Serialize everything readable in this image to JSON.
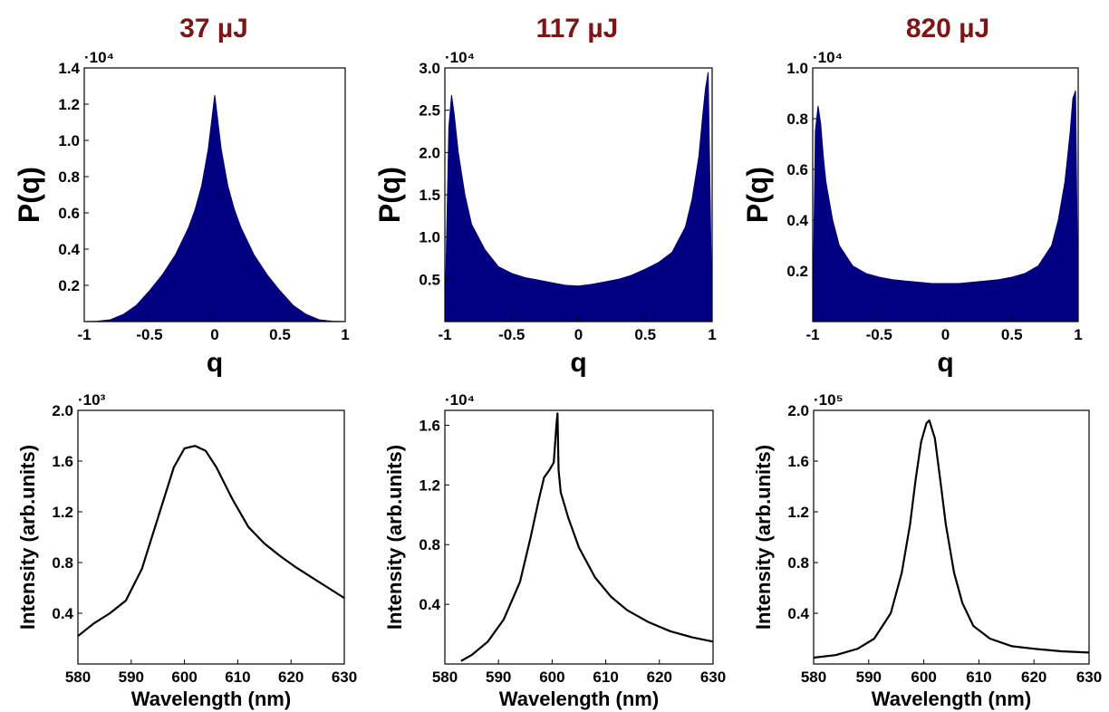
{
  "columns": [
    {
      "title": "37 µJ"
    },
    {
      "title": "117 µJ"
    },
    {
      "title": "820 µJ"
    }
  ],
  "chart_data": [
    {
      "type": "area",
      "panel": "histogram",
      "xlabel": "q",
      "ylabel": "P(q)",
      "multiplier": "·10⁴",
      "xlim": [
        -1,
        1
      ],
      "ylim": [
        0,
        1.4
      ],
      "xticks": [
        "-1",
        "-0.5",
        "0",
        "0.5",
        "1"
      ],
      "yticks": [
        "0.2",
        "0.4",
        "0.6",
        "0.8",
        "1.0",
        "1.2",
        "1.4"
      ],
      "color": "#000080",
      "x": [
        -1,
        -0.9,
        -0.8,
        -0.7,
        -0.6,
        -0.5,
        -0.4,
        -0.3,
        -0.2,
        -0.15,
        -0.1,
        -0.05,
        0,
        0.05,
        0.1,
        0.15,
        0.2,
        0.3,
        0.4,
        0.5,
        0.6,
        0.7,
        0.8,
        0.9,
        1
      ],
      "y": [
        0,
        0.002,
        0.01,
        0.04,
        0.09,
        0.17,
        0.26,
        0.37,
        0.52,
        0.62,
        0.75,
        0.95,
        1.25,
        0.95,
        0.75,
        0.62,
        0.52,
        0.37,
        0.26,
        0.17,
        0.09,
        0.04,
        0.01,
        0.002,
        0
      ]
    },
    {
      "type": "area",
      "panel": "histogram",
      "xlabel": "q",
      "ylabel": "P(q)",
      "multiplier": "·10⁴",
      "xlim": [
        -1,
        1
      ],
      "ylim": [
        0,
        3.0
      ],
      "xticks": [
        "-1",
        "-0.5",
        "0",
        "0.5",
        "1"
      ],
      "yticks": [
        "0.5",
        "1.0",
        "1.5",
        "2.0",
        "2.5",
        "3.0"
      ],
      "color": "#000080",
      "x": [
        -1,
        -0.97,
        -0.95,
        -0.93,
        -0.9,
        -0.85,
        -0.8,
        -0.7,
        -0.6,
        -0.5,
        -0.4,
        -0.3,
        -0.2,
        -0.1,
        0,
        0.1,
        0.2,
        0.3,
        0.4,
        0.5,
        0.6,
        0.7,
        0.8,
        0.85,
        0.9,
        0.93,
        0.95,
        0.97,
        1
      ],
      "y": [
        0,
        2.3,
        2.68,
        2.45,
        2.0,
        1.5,
        1.15,
        0.85,
        0.65,
        0.57,
        0.52,
        0.49,
        0.46,
        0.43,
        0.42,
        0.44,
        0.47,
        0.5,
        0.55,
        0.62,
        0.7,
        0.82,
        1.12,
        1.45,
        1.95,
        2.45,
        2.75,
        2.95,
        0
      ]
    },
    {
      "type": "area",
      "panel": "histogram",
      "xlabel": "q",
      "ylabel": "P(q)",
      "multiplier": "·10⁴",
      "xlim": [
        -1,
        1
      ],
      "ylim": [
        0,
        1.0
      ],
      "xticks": [
        "-1",
        "-0.5",
        "0",
        "0.5",
        "1"
      ],
      "yticks": [
        "0.2",
        "0.4",
        "0.6",
        "0.8",
        "1.0"
      ],
      "color": "#000080",
      "x": [
        -1,
        -0.98,
        -0.96,
        -0.94,
        -0.92,
        -0.9,
        -0.85,
        -0.8,
        -0.7,
        -0.6,
        -0.5,
        -0.4,
        -0.3,
        -0.2,
        -0.1,
        0,
        0.1,
        0.2,
        0.3,
        0.4,
        0.5,
        0.6,
        0.7,
        0.8,
        0.85,
        0.9,
        0.92,
        0.94,
        0.96,
        0.98,
        1
      ],
      "y": [
        0,
        0.75,
        0.85,
        0.78,
        0.65,
        0.55,
        0.4,
        0.3,
        0.22,
        0.19,
        0.175,
        0.165,
        0.16,
        0.155,
        0.15,
        0.15,
        0.15,
        0.155,
        0.16,
        0.165,
        0.175,
        0.19,
        0.22,
        0.3,
        0.4,
        0.55,
        0.65,
        0.75,
        0.88,
        0.91,
        0
      ]
    },
    {
      "type": "line",
      "panel": "spectrum",
      "xlabel": "Wavelength (nm)",
      "ylabel": "Intensity (arb.units)",
      "multiplier": "·10³",
      "xlim": [
        580,
        630
      ],
      "ylim": [
        0,
        2.0
      ],
      "xticks": [
        "580",
        "590",
        "600",
        "610",
        "620",
        "630"
      ],
      "yticks": [
        "0.4",
        "0.8",
        "1.2",
        "1.6",
        "2.0"
      ],
      "color": "#000000",
      "x": [
        580,
        583,
        586,
        589,
        592,
        595,
        598,
        600,
        602,
        604,
        606,
        609,
        612,
        615,
        618,
        621,
        624,
        627,
        630
      ],
      "y": [
        0.22,
        0.32,
        0.4,
        0.5,
        0.75,
        1.15,
        1.55,
        1.7,
        1.72,
        1.68,
        1.55,
        1.3,
        1.08,
        0.95,
        0.85,
        0.76,
        0.68,
        0.6,
        0.52
      ]
    },
    {
      "type": "line",
      "panel": "spectrum",
      "xlabel": "Wavelength (nm)",
      "ylabel": "Intensity (arb.units)",
      "multiplier": "·10⁴",
      "xlim": [
        580,
        630
      ],
      "ylim": [
        0,
        1.7
      ],
      "xticks": [
        "580",
        "590",
        "600",
        "610",
        "620",
        "630"
      ],
      "yticks": [
        "0.4",
        "0.8",
        "1.2",
        "1.6"
      ],
      "color": "#000000",
      "x": [
        583,
        585,
        588,
        591,
        594,
        596,
        597.5,
        598.5,
        599.5,
        600.3,
        600.8,
        601,
        601.2,
        601.6,
        603,
        605,
        608,
        611,
        614,
        618,
        622,
        626,
        630
      ],
      "y": [
        0.02,
        0.06,
        0.15,
        0.3,
        0.55,
        0.85,
        1.1,
        1.25,
        1.3,
        1.35,
        1.6,
        1.68,
        1.3,
        1.15,
        0.98,
        0.78,
        0.58,
        0.45,
        0.36,
        0.28,
        0.22,
        0.18,
        0.15
      ]
    },
    {
      "type": "line",
      "panel": "spectrum",
      "xlabel": "Wavelength (nm)",
      "ylabel": "Intensity (arb.units)",
      "multiplier": "·10⁵",
      "xlim": [
        580,
        630
      ],
      "ylim": [
        0,
        2.0
      ],
      "xticks": [
        "580",
        "590",
        "600",
        "610",
        "620",
        "630"
      ],
      "yticks": [
        "0.4",
        "0.8",
        "1.2",
        "1.6",
        "2.0"
      ],
      "color": "#000000",
      "x": [
        580,
        584,
        588,
        591,
        594,
        596,
        597.5,
        598.5,
        599.5,
        600.5,
        601,
        602,
        603,
        604,
        605.5,
        607,
        609,
        612,
        616,
        620,
        625,
        630
      ],
      "y": [
        0.05,
        0.07,
        0.12,
        0.2,
        0.4,
        0.72,
        1.1,
        1.45,
        1.75,
        1.9,
        1.92,
        1.78,
        1.45,
        1.1,
        0.72,
        0.48,
        0.3,
        0.2,
        0.14,
        0.12,
        0.1,
        0.09
      ]
    }
  ]
}
